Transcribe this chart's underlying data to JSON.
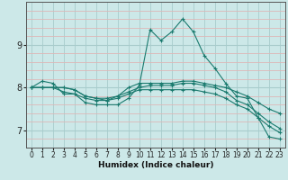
{
  "title": "",
  "xlabel": "Humidex (Indice chaleur)",
  "background_color": "#cce8e8",
  "line_color": "#1a7a6e",
  "xlim": [
    -0.5,
    23.5
  ],
  "ylim": [
    6.6,
    10.0
  ],
  "yticks": [
    7,
    8,
    9
  ],
  "xticks": [
    0,
    1,
    2,
    3,
    4,
    5,
    6,
    7,
    8,
    9,
    10,
    11,
    12,
    13,
    14,
    15,
    16,
    17,
    18,
    19,
    20,
    21,
    22,
    23
  ],
  "lines": [
    [
      8.0,
      8.15,
      8.1,
      7.85,
      7.85,
      7.65,
      7.6,
      7.6,
      7.6,
      7.75,
      8.05,
      9.35,
      9.1,
      9.3,
      9.6,
      9.3,
      8.75,
      8.45,
      8.1,
      7.8,
      7.75,
      7.3,
      6.85,
      6.8
    ],
    [
      8.0,
      8.0,
      8.0,
      8.0,
      7.95,
      7.8,
      7.75,
      7.7,
      7.8,
      8.0,
      8.1,
      8.1,
      8.1,
      8.1,
      8.15,
      8.15,
      8.1,
      8.05,
      8.0,
      7.9,
      7.8,
      7.65,
      7.5,
      7.4
    ],
    [
      8.0,
      8.0,
      8.0,
      8.0,
      7.95,
      7.8,
      7.75,
      7.75,
      7.8,
      7.9,
      8.0,
      8.05,
      8.05,
      8.05,
      8.1,
      8.1,
      8.05,
      8.0,
      7.9,
      7.7,
      7.6,
      7.4,
      7.2,
      7.05
    ],
    [
      8.0,
      8.0,
      8.0,
      7.9,
      7.85,
      7.75,
      7.7,
      7.7,
      7.75,
      7.85,
      7.95,
      7.95,
      7.95,
      7.95,
      7.95,
      7.95,
      7.9,
      7.85,
      7.75,
      7.6,
      7.5,
      7.3,
      7.1,
      6.95
    ]
  ],
  "pink_grid_color": "#ddb8b8",
  "teal_grid_color": "#a8cccc"
}
